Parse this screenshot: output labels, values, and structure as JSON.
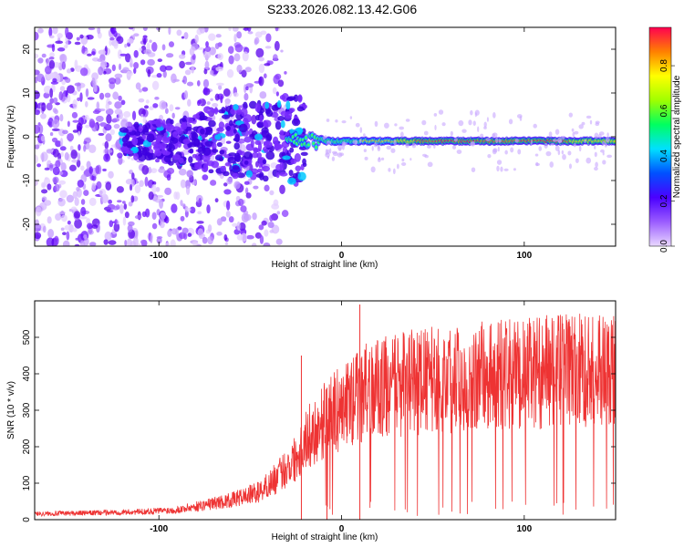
{
  "title": "S233.2026.082.13.42.G06",
  "chart_data": [
    {
      "id": "spectrogram",
      "type": "heatmap",
      "xlabel": "Height of straight line (km)",
      "ylabel": "Frequency (Hz)",
      "xlim": [
        -168,
        150
      ],
      "ylim": [
        -25,
        25
      ],
      "xticks": [
        -100,
        0,
        100
      ],
      "yticks": [
        -20,
        -10,
        0,
        10,
        20
      ],
      "grid": false,
      "description_of_ridge": {
        "noise_region_x": [
          -168,
          -30
        ],
        "transition_x": [
          -30,
          -10
        ],
        "carrier_region_x": [
          -10,
          150
        ],
        "carrier_frequency_hz": -1,
        "peak_amplitude_region_x": [
          40,
          125
        ]
      },
      "colorbar": {
        "label": "Normalized spectral amplitude",
        "range": [
          0,
          0.97
        ],
        "ticks": [
          0,
          0.2,
          0.4,
          0.6,
          0.8
        ],
        "colormap": [
          "#e9d8ff",
          "#9b5cff",
          "#4b00ff",
          "#0050ff",
          "#00e0ff",
          "#00ff60",
          "#a0ff00",
          "#ffff00",
          "#ff8000",
          "#ff0050"
        ]
      }
    },
    {
      "id": "snr",
      "type": "line",
      "xlabel": "Height of straight line (km)",
      "ylabel": "SNR (10 * v/v)",
      "xlim": [
        -168,
        150
      ],
      "ylim": [
        0,
        600
      ],
      "xticks": [
        -100,
        0,
        100
      ],
      "yticks": [
        0,
        100,
        200,
        300,
        400,
        500
      ],
      "grid": false,
      "color": "#ee3333",
      "envelope_points": {
        "x": [
          -168,
          -140,
          -110,
          -90,
          -75,
          -60,
          -45,
          -35,
          -25,
          -20,
          -15,
          -10,
          -5,
          0,
          5,
          10,
          20,
          30,
          40,
          50,
          60,
          70,
          80,
          90,
          100,
          110,
          120,
          130,
          140,
          150
        ],
        "y": [
          18,
          20,
          24,
          30,
          45,
          60,
          85,
          130,
          190,
          240,
          270,
          300,
          320,
          340,
          360,
          380,
          400,
          410,
          420,
          425,
          430,
          435,
          440,
          440,
          445,
          450,
          455,
          455,
          460,
          460
        ]
      },
      "spikes": [
        {
          "x": -22,
          "y": 450
        },
        {
          "x": 10,
          "y": 590
        },
        {
          "x": -8,
          "y": 360
        }
      ]
    }
  ]
}
